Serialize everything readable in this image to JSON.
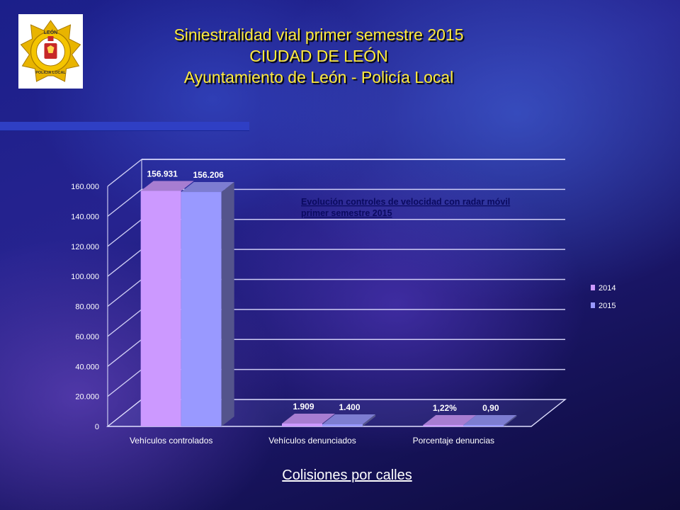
{
  "slide": {
    "title_lines": [
      "Siniestralidad vial primer semestre 2015",
      "CIUDAD DE LEÓN",
      "Ayuntamiento de León - Policía Local"
    ],
    "logo": {
      "top_text": "LEÓN",
      "bottom_text": "POLICIA LOCAL"
    },
    "link_text": "Colisiones por calles"
  },
  "colors": {
    "series_2014": "#cc99ff",
    "series_2015": "#9999ff",
    "title": "#ffeb3b",
    "link": "#ffffff"
  },
  "chart_data": {
    "type": "bar",
    "title": "",
    "annotation_lines": [
      "Evolución controles de velocidad con radar móvil",
      "primer semestre 2015"
    ],
    "categories": [
      "Vehículos controlados",
      "Vehículos denunciados",
      "Porcentaje denuncias"
    ],
    "series": [
      {
        "name": "2014",
        "values": [
          156931,
          1909,
          1.22
        ],
        "labels": [
          "156.931",
          "1.909",
          "1,22%"
        ]
      },
      {
        "name": "2015",
        "values": [
          156206,
          1400,
          0.9
        ],
        "labels": [
          "156.206",
          "1.400",
          "0,90"
        ]
      }
    ],
    "y_ticks": [
      "0",
      "20.000",
      "40.000",
      "60.000",
      "80.000",
      "100.000",
      "120.000",
      "140.000",
      "160.000"
    ],
    "ylim": [
      0,
      160000
    ],
    "grid": true,
    "legend_position": "right"
  }
}
